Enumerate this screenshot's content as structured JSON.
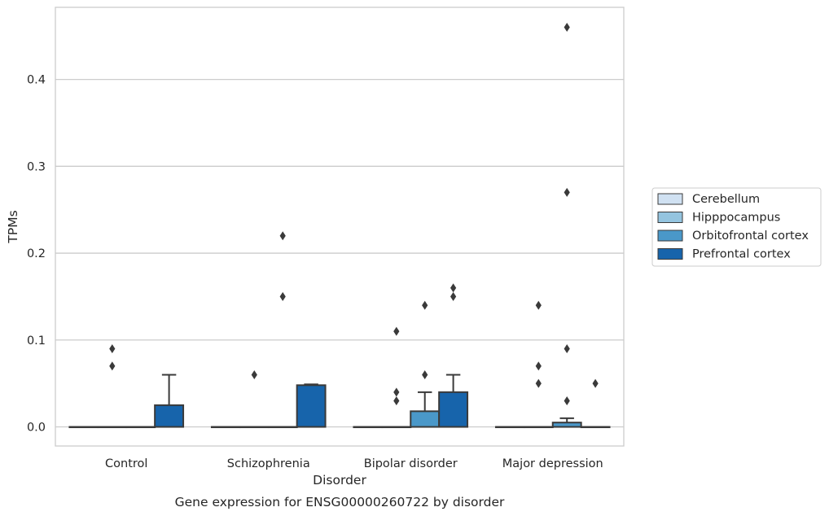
{
  "chart_data": {
    "type": "box",
    "title": "",
    "caption": "Gene expression for ENSG00000260722 by disorder",
    "xlabel": "Disorder",
    "ylabel": "TPMs",
    "ylim": [
      -0.022,
      0.483
    ],
    "yticks": [
      "0.0",
      "0.1",
      "0.2",
      "0.3",
      "0.4"
    ],
    "ytick_values": [
      0.0,
      0.1,
      0.2,
      0.3,
      0.4
    ],
    "grid": "horizontal",
    "legend_placement": "right-center",
    "categories": [
      "Control",
      "Schizophrenia",
      "Bipolar disorder",
      "Major depression"
    ],
    "series": [
      {
        "name": "Cerebellum",
        "color": "#d0e1f2",
        "boxes": [
          {
            "q1": 0,
            "median": 0,
            "q3": 0,
            "whisker_low": 0,
            "whisker_high": 0,
            "outliers": []
          },
          {
            "q1": 0,
            "median": 0,
            "q3": 0,
            "whisker_low": 0,
            "whisker_high": 0,
            "outliers": []
          },
          {
            "q1": 0,
            "median": 0,
            "q3": 0,
            "whisker_low": 0,
            "whisker_high": 0,
            "outliers": []
          },
          {
            "q1": 0,
            "median": 0,
            "q3": 0,
            "whisker_low": 0,
            "whisker_high": 0,
            "outliers": []
          }
        ]
      },
      {
        "name": "Hipppocampus",
        "color": "#94c4df",
        "boxes": [
          {
            "q1": 0,
            "median": 0,
            "q3": 0,
            "whisker_low": 0,
            "whisker_high": 0,
            "outliers": [
              0.07,
              0.09
            ]
          },
          {
            "q1": 0,
            "median": 0,
            "q3": 0,
            "whisker_low": 0,
            "whisker_high": 0,
            "outliers": [
              0.06
            ]
          },
          {
            "q1": 0,
            "median": 0,
            "q3": 0,
            "whisker_low": 0,
            "whisker_high": 0,
            "outliers": [
              0.03,
              0.04,
              0.11
            ]
          },
          {
            "q1": 0,
            "median": 0,
            "q3": 0,
            "whisker_low": 0,
            "whisker_high": 0,
            "outliers": [
              0.05,
              0.07,
              0.14
            ]
          }
        ]
      },
      {
        "name": "Orbitofrontal cortex",
        "color": "#4a98c9",
        "boxes": [
          {
            "q1": 0,
            "median": 0,
            "q3": 0,
            "whisker_low": 0,
            "whisker_high": 0,
            "outliers": []
          },
          {
            "q1": 0,
            "median": 0,
            "q3": 0,
            "whisker_low": 0,
            "whisker_high": 0,
            "outliers": [
              0.15,
              0.22
            ]
          },
          {
            "q1": 0,
            "median": 0,
            "q3": 0.018,
            "whisker_low": 0,
            "whisker_high": 0.04,
            "outliers": [
              0.06,
              0.14
            ]
          },
          {
            "q1": 0,
            "median": 0,
            "q3": 0.005,
            "whisker_low": 0,
            "whisker_high": 0.01,
            "outliers": [
              0.03,
              0.09,
              0.27,
              0.46
            ]
          }
        ]
      },
      {
        "name": "Prefrontal cortex",
        "color": "#1764ab",
        "boxes": [
          {
            "q1": 0,
            "median": 0,
            "q3": 0.025,
            "whisker_low": 0,
            "whisker_high": 0.06,
            "outliers": []
          },
          {
            "q1": 0,
            "median": 0,
            "q3": 0.048,
            "whisker_low": 0,
            "whisker_high": 0.049,
            "outliers": []
          },
          {
            "q1": 0,
            "median": 0,
            "q3": 0.04,
            "whisker_low": 0,
            "whisker_high": 0.06,
            "outliers": [
              0.15,
              0.16
            ]
          },
          {
            "q1": 0,
            "median": 0,
            "q3": 0,
            "whisker_low": 0,
            "whisker_high": 0,
            "outliers": [
              0.05
            ]
          }
        ]
      }
    ]
  }
}
